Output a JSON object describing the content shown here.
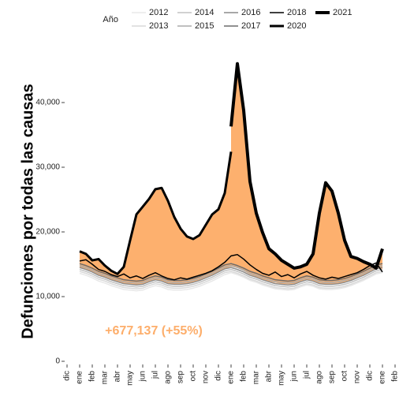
{
  "chart_data": {
    "type": "line",
    "y_label": "Defunciones por todas las causas",
    "legend_title": "Año",
    "annotation": "+677,137 (+55%)",
    "annotation_color": "#fdae6b",
    "fill_color": "#fdb06e",
    "categories": [
      "dic",
      null,
      "ene",
      null,
      "feb",
      null,
      "mar",
      null,
      "abr",
      null,
      "may",
      null,
      "jun",
      null,
      "jul",
      null,
      "ago",
      null,
      "sep",
      null,
      "oct",
      null,
      "nov",
      null,
      "dic",
      null,
      "ene",
      null,
      "feb",
      null,
      "mar",
      null,
      "abr",
      null,
      "may",
      null,
      "jun",
      null,
      "jul",
      null,
      "ago",
      null,
      "sep",
      null,
      "oct",
      null,
      "nov",
      null,
      "dic",
      null,
      "ene",
      null,
      "feb"
    ],
    "ylim": [
      0,
      47000
    ],
    "yticks": [
      0,
      {
        "value": 10000,
        "label": "10,000"
      },
      {
        "value": 20000,
        "label": "20,000"
      },
      {
        "value": 30000,
        "label": "30,000"
      },
      {
        "value": 40000,
        "label": "40,000"
      }
    ],
    "series": [
      {
        "name": "2012",
        "color": "#e8e8e8",
        "line_width": 1.5,
        "values": [
          null,
          null,
          13600,
          13300,
          12900,
          12400,
          12100,
          11700,
          11400,
          11100,
          11000,
          10900,
          11000,
          11400,
          11700,
          11500,
          11100,
          11000,
          11000,
          11100,
          11300,
          11600,
          12000,
          12400,
          12900,
          13400,
          13700,
          13400,
          13000,
          12500,
          12200,
          11800,
          11500,
          11200,
          11100,
          11000,
          11100,
          11500,
          11800,
          11600,
          11200,
          11100,
          11100,
          11200,
          11400,
          11700,
          12100,
          12500,
          13000,
          13500,
          13700,
          null,
          null
        ]
      },
      {
        "name": "2013",
        "color": "#d9d9d9",
        "line_width": 1.5,
        "values": [
          null,
          null,
          13900,
          13600,
          13200,
          12700,
          12400,
          12000,
          11700,
          11400,
          11300,
          11200,
          11300,
          11700,
          12000,
          11800,
          11400,
          11300,
          11300,
          11400,
          11600,
          11900,
          12300,
          12700,
          13200,
          13700,
          13900,
          13600,
          13200,
          12700,
          12400,
          12000,
          11700,
          11400,
          11300,
          11200,
          11300,
          11700,
          12000,
          11800,
          11400,
          11300,
          11300,
          11400,
          11600,
          11900,
          12300,
          12700,
          13200,
          13700,
          13900,
          null,
          null
        ]
      },
      {
        "name": "2014",
        "color": "#c2c2c2",
        "line_width": 1.5,
        "values": [
          null,
          null,
          14200,
          13900,
          13500,
          13000,
          12700,
          12300,
          12000,
          11700,
          11600,
          11500,
          11600,
          12000,
          12300,
          12100,
          11700,
          11600,
          11600,
          11700,
          11900,
          12200,
          12600,
          13000,
          13500,
          14000,
          14200,
          13900,
          13500,
          13000,
          12700,
          12300,
          12000,
          11700,
          11600,
          11500,
          11600,
          12000,
          12300,
          12100,
          11700,
          11600,
          11600,
          11700,
          11900,
          12200,
          12600,
          13000,
          13500,
          14000,
          14200,
          null,
          null
        ]
      },
      {
        "name": "2015",
        "color": "#ababab",
        "line_width": 1.5,
        "values": [
          null,
          null,
          14800,
          14500,
          14100,
          13600,
          13300,
          12900,
          12600,
          12300,
          12200,
          12100,
          12200,
          12600,
          12900,
          12700,
          12300,
          12200,
          12200,
          12300,
          12500,
          12800,
          13200,
          13600,
          14100,
          14600,
          14800,
          14500,
          14100,
          13600,
          13300,
          12900,
          12600,
          12300,
          12200,
          12100,
          12200,
          12600,
          12900,
          12700,
          12300,
          12200,
          12200,
          12300,
          12500,
          12800,
          13200,
          13600,
          14100,
          14600,
          14800,
          null,
          null
        ]
      },
      {
        "name": "2016",
        "color": "#8c8c8c",
        "line_width": 1.5,
        "values": [
          null,
          null,
          14500,
          14200,
          13800,
          13300,
          13000,
          12600,
          12300,
          12000,
          11900,
          11800,
          11900,
          12300,
          12600,
          12400,
          12000,
          11900,
          11900,
          12000,
          12200,
          12500,
          12900,
          13300,
          13800,
          14300,
          14500,
          14200,
          13800,
          13300,
          13000,
          12600,
          12300,
          12000,
          11900,
          11800,
          11900,
          12300,
          12600,
          12400,
          12000,
          11900,
          11900,
          12000,
          12200,
          12500,
          12900,
          13300,
          13800,
          14300,
          14500,
          null,
          null
        ]
      },
      {
        "name": "2017",
        "color": "#6b6b6b",
        "line_width": 1.5,
        "values": [
          null,
          null,
          15100,
          14800,
          14400,
          13900,
          13600,
          13200,
          12900,
          12600,
          12500,
          12400,
          12500,
          12900,
          13200,
          13000,
          12600,
          12500,
          12500,
          12600,
          12800,
          13100,
          13500,
          13900,
          14400,
          14900,
          15100,
          14800,
          14400,
          13900,
          13600,
          13200,
          12900,
          12600,
          12500,
          12400,
          12500,
          12900,
          13200,
          13000,
          12600,
          12500,
          12500,
          12600,
          12800,
          13100,
          13500,
          13900,
          14400,
          14900,
          15100,
          null,
          null
        ]
      },
      {
        "name": "2018",
        "color": "#000000",
        "line_width": 1.5,
        "values": [
          null,
          null,
          15500,
          15700,
          15000,
          14200,
          13900,
          13400,
          13100,
          13500,
          12900,
          13200,
          12800,
          13300,
          13700,
          13200,
          12800,
          12600,
          12900,
          12700,
          13000,
          13300,
          13600,
          14000,
          14600,
          15300,
          16300,
          16500,
          15800,
          14900,
          14200,
          13600,
          13300,
          13800,
          13100,
          13400,
          12900,
          13500,
          13900,
          13300,
          12900,
          12700,
          13000,
          12800,
          13100,
          13400,
          13700,
          14200,
          14800,
          15200,
          13800,
          null,
          null
        ]
      },
      {
        "name": "2020",
        "color": "#000000",
        "line_width": 3,
        "values": [
          null,
          null,
          17000,
          16600,
          15600,
          15800,
          14800,
          14000,
          13500,
          14600,
          18700,
          22700,
          23900,
          25100,
          26600,
          26800,
          24800,
          22300,
          20500,
          19300,
          18900,
          19500,
          21100,
          22700,
          23500,
          26000,
          32400,
          null,
          null,
          null,
          null,
          null,
          null,
          null,
          null,
          null,
          null,
          null,
          null,
          null,
          null,
          null,
          null,
          null,
          null,
          null,
          null,
          null,
          null,
          null,
          null,
          null,
          null
        ]
      },
      {
        "name": "2021",
        "color": "#000000",
        "line_width": 4,
        "values": [
          null,
          null,
          null,
          null,
          null,
          null,
          null,
          null,
          null,
          null,
          null,
          null,
          null,
          null,
          null,
          null,
          null,
          null,
          null,
          null,
          null,
          null,
          null,
          null,
          null,
          null,
          36300,
          46000,
          38800,
          27800,
          22900,
          19900,
          17400,
          16600,
          15600,
          15000,
          14400,
          14600,
          15000,
          16600,
          22900,
          27600,
          26300,
          22900,
          18700,
          16200,
          15900,
          15400,
          15000,
          14400,
          17400,
          null,
          null
        ]
      }
    ]
  }
}
